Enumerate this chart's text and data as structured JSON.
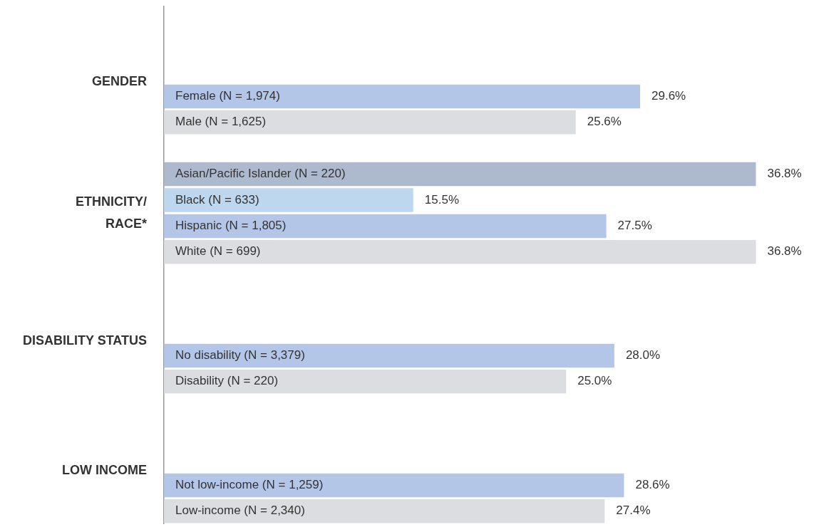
{
  "chart_data": {
    "type": "bar",
    "orientation": "horizontal",
    "categories": [
      null,
      null,
      null,
      "Female (N = 1,974)",
      "Male (N = 1,625)",
      null,
      "Asian/Pacific Islander (N = 220)",
      "Black (N = 633)",
      "Hispanic (N = 1,805)",
      "White (N = 699)",
      null,
      null,
      null,
      "No disability (N = 3,379)",
      "Disability (N = 220)",
      null,
      null,
      null,
      "Not low-income (N = 1,259)",
      "Low-income (N = 2,340)"
    ],
    "values": [
      null,
      null,
      null,
      29.6,
      25.6,
      null,
      36.8,
      15.5,
      27.5,
      36.8,
      null,
      null,
      null,
      28.0,
      25.0,
      null,
      null,
      null,
      28.6,
      27.4
    ],
    "value_labels": [
      null,
      null,
      null,
      "29.6%",
      "25.6%",
      null,
      "36.8%",
      "15.5%",
      "27.5%",
      "36.8%",
      null,
      null,
      null,
      "28.0%",
      "25.0%",
      null,
      null,
      null,
      "28.6%",
      "27.4%"
    ],
    "colors": [
      null,
      null,
      null,
      "#b4c6e7",
      "#dcdde0",
      null,
      "#adb9cd",
      "#bdd7ee",
      "#b4c6e7",
      "#dcdde0",
      null,
      null,
      null,
      "#b4c6e7",
      "#dcdde0",
      null,
      null,
      null,
      "#b4c6e7",
      "#dcdde0"
    ],
    "xlim": [
      0,
      37
    ],
    "annotations": [
      "GENDER",
      "ETHNICITY/\nRACE*",
      "DISABILITY STATUS",
      "LOW INCOME"
    ]
  }
}
